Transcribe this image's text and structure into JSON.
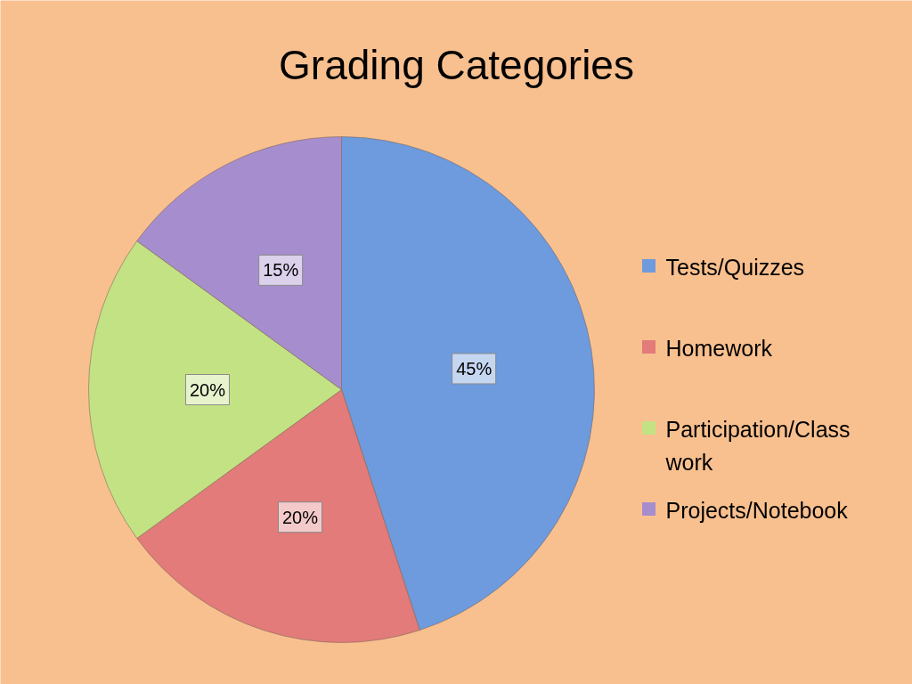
{
  "chart_data": {
    "type": "pie",
    "title": "Grading Categories",
    "categories": [
      "Tests/Quizzes",
      "Homework",
      "Participation/Class work",
      "Projects/Notebook"
    ],
    "values": [
      45,
      20,
      20,
      15
    ],
    "value_labels": [
      "45%",
      "20%",
      "20%",
      "15%"
    ],
    "colors": [
      "#6e9ade",
      "#e27b79",
      "#c3e283",
      "#a68dcd"
    ],
    "legend": "right"
  }
}
